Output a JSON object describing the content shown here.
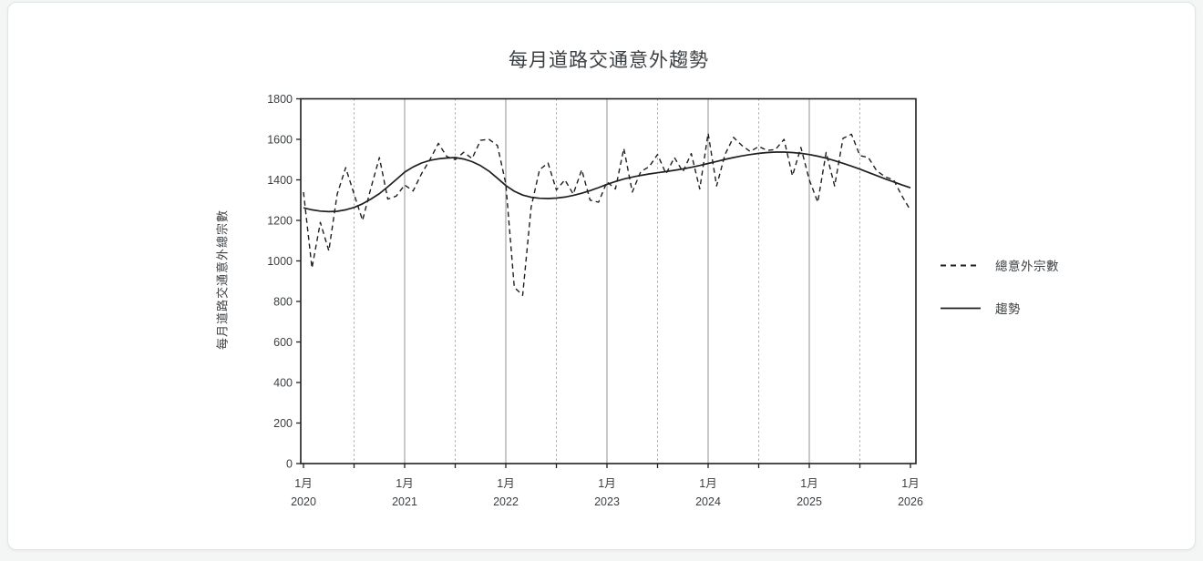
{
  "card": {},
  "chart_data": {
    "type": "line",
    "title": "每月道路交通意外趨勢",
    "xlabel": "",
    "ylabel": "每月道路交通意外總宗數",
    "ylim": [
      0,
      1800
    ],
    "y_tick_step": 200,
    "y_tick_labels": [
      "0",
      "200",
      "400",
      "600",
      "800",
      "1000",
      "1200",
      "1400",
      "1600",
      "1800"
    ],
    "x_tick_labels": [
      {
        "month": "1月",
        "year": "2020",
        "month_index": 0
      },
      {
        "month": "1月",
        "year": "2021",
        "month_index": 12
      },
      {
        "month": "1月",
        "year": "2022",
        "month_index": 24
      },
      {
        "month": "1月",
        "year": "2023",
        "month_index": 36
      },
      {
        "month": "1月",
        "year": "2024",
        "month_index": 48
      },
      {
        "month": "1月",
        "year": "2025",
        "month_index": 60
      },
      {
        "month": "1月",
        "year": "2026",
        "month_index": 72
      }
    ],
    "minor_gridline_month_indices": [
      6,
      18,
      30,
      42,
      54,
      66
    ],
    "major_gridline_month_indices": [
      12,
      24,
      36,
      48,
      60
    ],
    "grid": "on",
    "legend_position": "right",
    "series": [
      {
        "name": "總意外宗數",
        "style": "dashed",
        "values": [
          1340,
          965,
          1190,
          1050,
          1330,
          1460,
          1330,
          1200,
          1360,
          1510,
          1305,
          1320,
          1375,
          1345,
          1430,
          1500,
          1580,
          1515,
          1500,
          1536,
          1505,
          1595,
          1600,
          1570,
          1380,
          870,
          830,
          1265,
          1450,
          1483,
          1350,
          1400,
          1330,
          1450,
          1300,
          1290,
          1390,
          1355,
          1555,
          1340,
          1440,
          1465,
          1525,
          1430,
          1510,
          1440,
          1530,
          1355,
          1630,
          1370,
          1525,
          1610,
          1570,
          1540,
          1565,
          1545,
          1550,
          1600,
          1420,
          1560,
          1400,
          1290,
          1535,
          1370,
          1605,
          1625,
          1520,
          1510,
          1445,
          1415,
          1400,
          1320,
          1250
        ]
      },
      {
        "name": "趨勢",
        "style": "solid",
        "values": [
          1262,
          1252,
          1246,
          1243,
          1245,
          1252,
          1264,
          1282,
          1305,
          1332,
          1366,
          1402,
          1438,
          1464,
          1483,
          1496,
          1504,
          1508,
          1510,
          1503,
          1490,
          1470,
          1443,
          1408,
          1372,
          1344,
          1325,
          1314,
          1309,
          1308,
          1310,
          1315,
          1323,
          1334,
          1347,
          1362,
          1378,
          1392,
          1404,
          1414,
          1422,
          1429,
          1435,
          1441,
          1447,
          1454,
          1462,
          1471,
          1481,
          1491,
          1501,
          1510,
          1518,
          1525,
          1531,
          1535,
          1537,
          1537,
          1535,
          1531,
          1525,
          1517,
          1507,
          1495,
          1482,
          1468,
          1453,
          1437,
          1421,
          1405,
          1390,
          1375,
          1361
        ]
      }
    ],
    "colors": {
      "series": "#1f1f1f",
      "major_grid": "#8f9398",
      "minor_grid": "#9aa0a6",
      "axis": "#1f1f1f",
      "text": "#3b3f42",
      "plot_background": "#ffffff",
      "page_background": "#f3f6f5"
    }
  },
  "legend": {
    "items": [
      {
        "label": "總意外宗數",
        "sample": "dashed-line"
      },
      {
        "label": "趨勢",
        "sample": "solid-line"
      }
    ]
  }
}
